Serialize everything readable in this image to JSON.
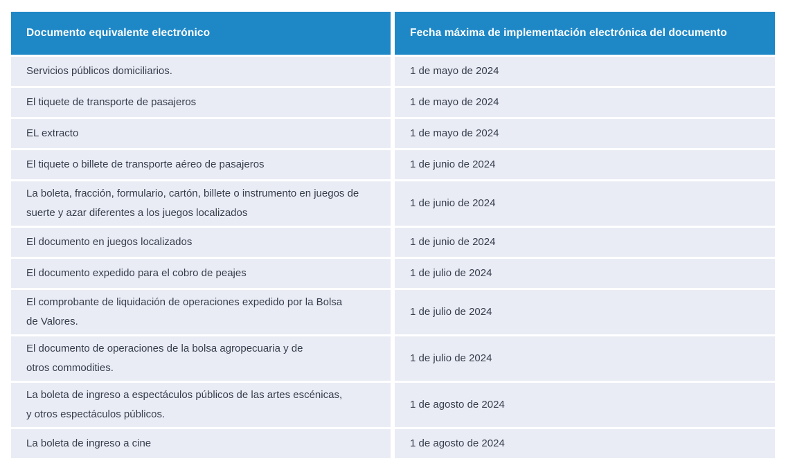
{
  "table": {
    "colors": {
      "header_bg": "#1e88c7",
      "header_text": "#ffffff",
      "row_bg": "#e9ecf4",
      "row_text": "#363d4d",
      "page_bg": "#ffffff"
    },
    "header": {
      "col1": "Documento equivalente electrónico",
      "col2": "Fecha máxima de implementación electrónica del documento"
    },
    "rows": [
      {
        "document": "Servicios públicos domiciliarios.",
        "date": "1 de mayo de 2024"
      },
      {
        "document": "El tiquete de transporte de pasajeros",
        "date": "1 de mayo de 2024"
      },
      {
        "document": "EL extracto",
        "date": "1 de mayo de 2024"
      },
      {
        "document": "El tiquete o billete de transporte aéreo de pasajeros",
        "date": "1 de junio de 2024"
      },
      {
        "document": "La boleta, fracción, formulario, cartón, billete o instrumento en juegos de\nsuerte y azar diferentes a los juegos localizados",
        "date": "1 de junio de 2024"
      },
      {
        "document": "El documento en juegos localizados",
        "date": "1 de junio de 2024"
      },
      {
        "document": "El documento expedido para el cobro de peajes",
        "date": "1 de julio de 2024"
      },
      {
        "document": "El comprobante de liquidación de operaciones expedido por la Bolsa\nde Valores.",
        "date": "1 de julio de 2024"
      },
      {
        "document": "El documento de operaciones de la bolsa agropecuaria y de\notros commodities.",
        "date": "1 de julio de 2024"
      },
      {
        "document": "La boleta de ingreso a espectáculos públicos de las artes escénicas,\ny otros espectáculos públicos.",
        "date": "1 de agosto de 2024"
      },
      {
        "document": "La boleta de ingreso a cine",
        "date": "1 de agosto de 2024"
      }
    ]
  }
}
